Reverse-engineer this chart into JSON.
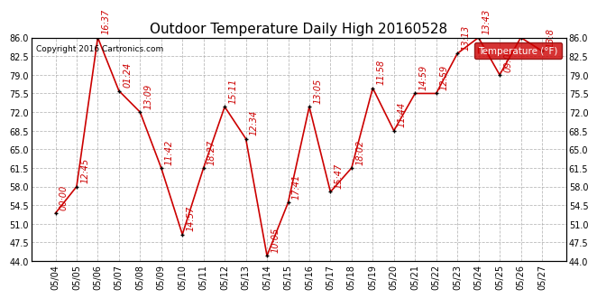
{
  "title": "Outdoor Temperature Daily High 20160528",
  "copyright": "Copyright 2016 Cartronics.com",
  "legend_label": "Temperature (°F)",
  "dates": [
    "05/04",
    "05/05",
    "05/06",
    "05/07",
    "05/08",
    "05/09",
    "05/10",
    "05/11",
    "05/12",
    "05/13",
    "05/14",
    "05/15",
    "05/16",
    "05/17",
    "05/18",
    "05/19",
    "05/20",
    "05/21",
    "05/22",
    "05/23",
    "05/24",
    "05/25",
    "05/26",
    "05/27"
  ],
  "temperatures": [
    53.0,
    58.0,
    86.0,
    76.0,
    72.0,
    61.5,
    49.0,
    61.5,
    73.0,
    67.0,
    45.0,
    55.0,
    73.0,
    57.0,
    61.5,
    76.5,
    68.5,
    75.5,
    75.5,
    83.0,
    86.0,
    79.0,
    86.0,
    83.5
  ],
  "time_labels": [
    "00:00",
    "12:45",
    "16:37",
    "01:24",
    "13:09",
    "11:42",
    "14:57",
    "18:27",
    "15:11",
    "12:34",
    "10:05",
    "17:41",
    "13:05",
    "15:47",
    "18:02",
    "11:58",
    "11:44",
    "14:59",
    "12:59",
    "13:13",
    "13:43",
    "09:02",
    "",
    "13:8"
  ],
  "ylim": [
    44.0,
    86.0
  ],
  "yticks": [
    44.0,
    47.5,
    51.0,
    54.5,
    58.0,
    61.5,
    65.0,
    68.5,
    72.0,
    75.5,
    79.0,
    82.5,
    86.0
  ],
  "line_color": "#cc0000",
  "marker_color": "#000000",
  "background_color": "#ffffff",
  "grid_color": "#aaaaaa",
  "legend_bg": "#cc0000",
  "legend_text_color": "#ffffff",
  "title_fontsize": 11,
  "label_fontsize": 7,
  "annot_fontsize": 7,
  "copyright_fontsize": 6.5
}
